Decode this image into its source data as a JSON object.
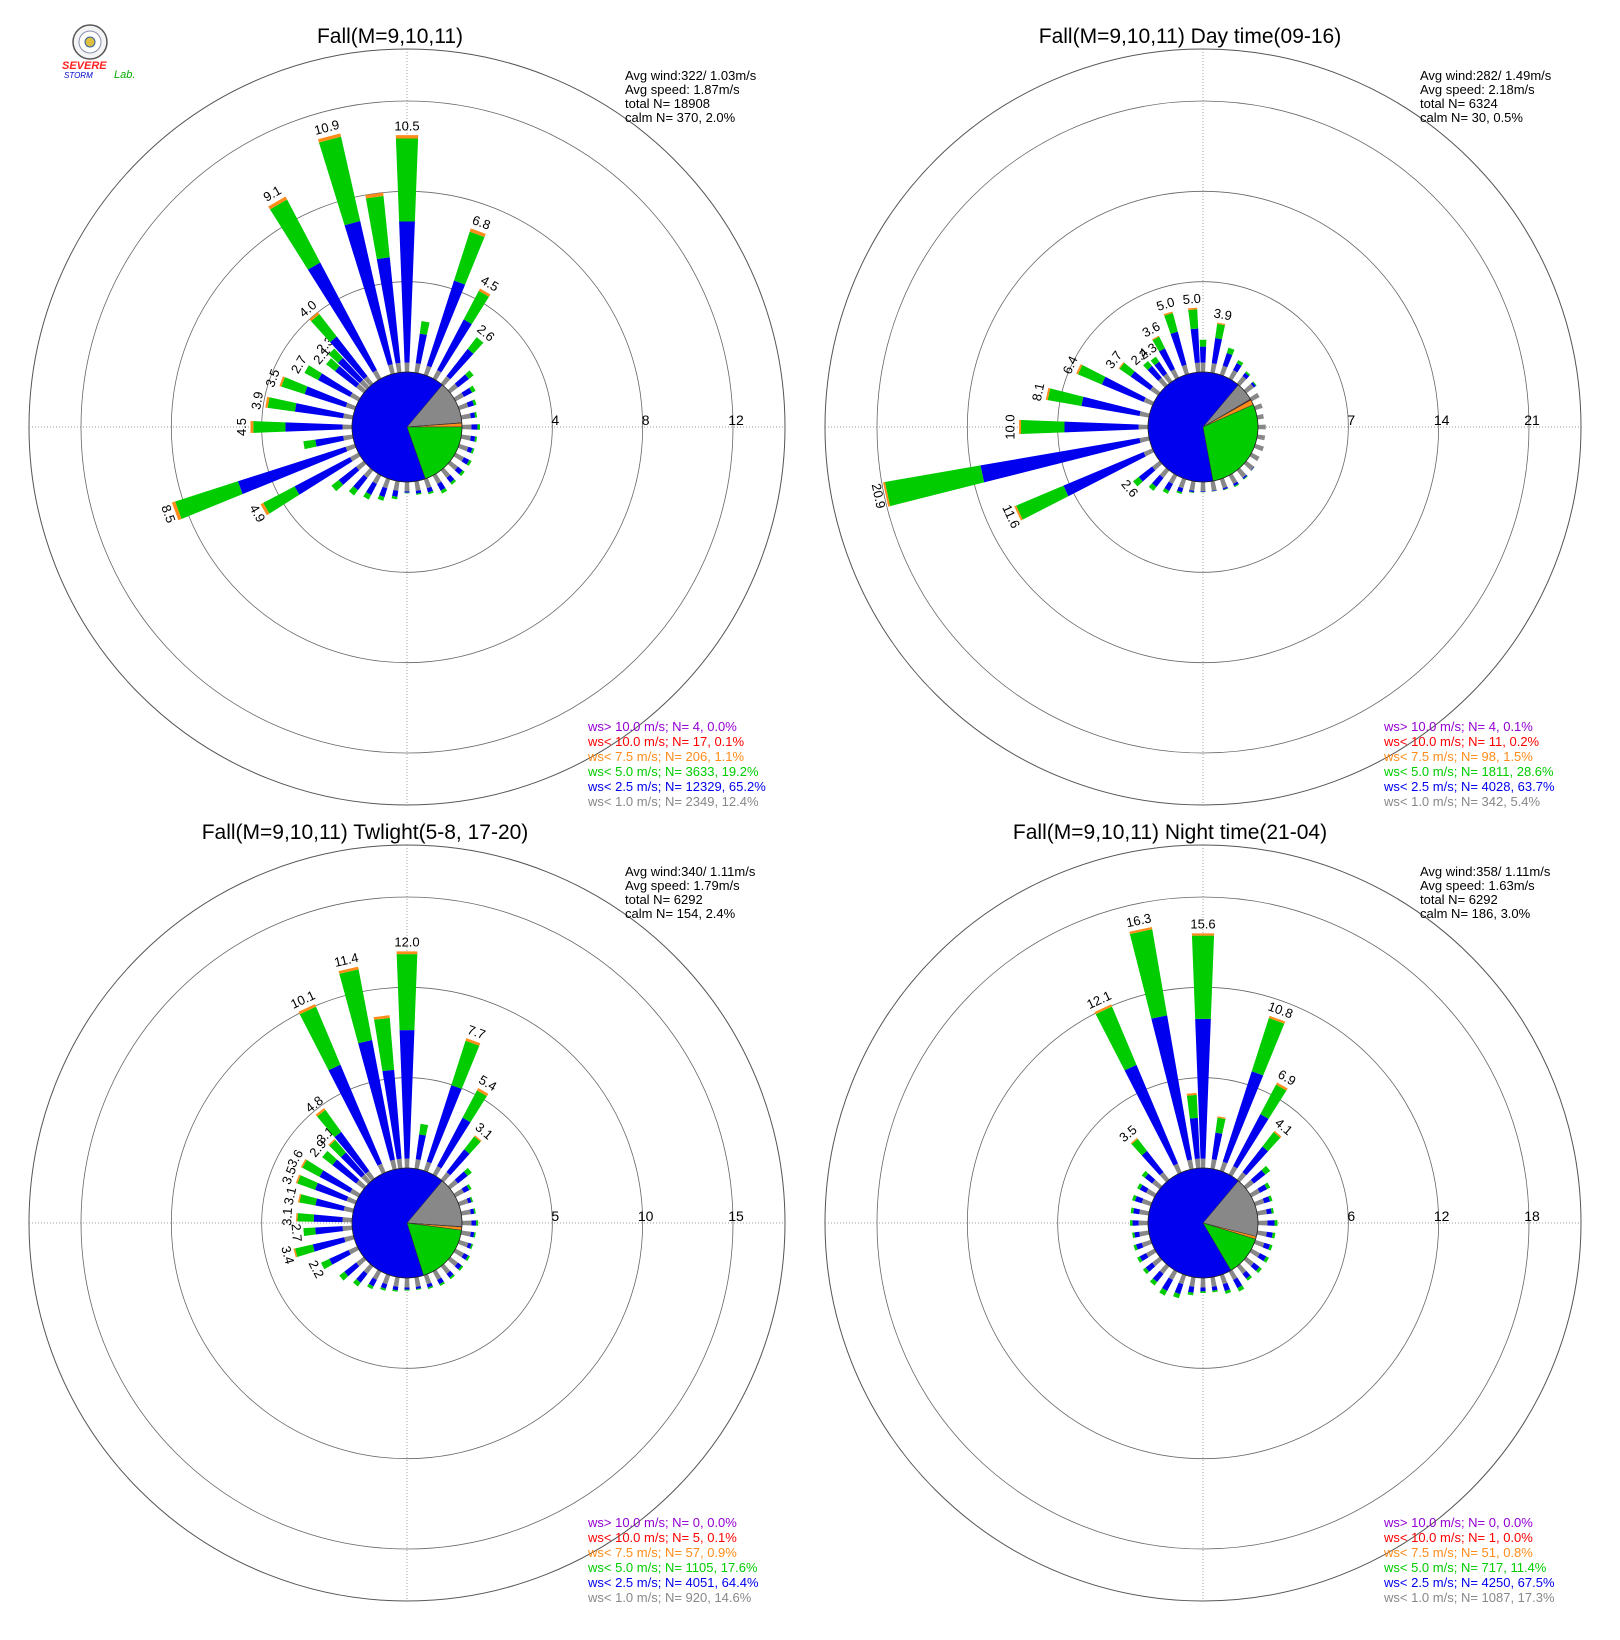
{
  "logo": {
    "line1": "SEVERE",
    "line2": "STORM",
    "line3": "Lab."
  },
  "colors": {
    "calm": "#888888",
    "lt25": "#0000ee",
    "lt50": "#00cc00",
    "lt75": "#ff8c1a",
    "lt100": "#ff0000",
    "gt100": "#9400d3",
    "grid": "#777777"
  },
  "chart_data": [
    {
      "type": "windrose",
      "title": "Fall(M=9,10,11)",
      "rings": [
        4,
        8,
        12
      ],
      "ring_labels": [
        "4",
        "8",
        "12"
      ],
      "stats": [
        "Avg wind:322/ 1.03m/s",
        "Avg speed: 1.87m/s",
        "total N=       18908",
        "calm N=    370,   2.0%"
      ],
      "legend": [
        "ws> 10.0 m/s; N=     4,  0.0%",
        "ws< 10.0 m/s; N=    17,  0.1%",
        "ws<  7.5 m/s; N=   206,  1.1%",
        "ws<  5.0 m/s; N=  3633, 19.2%",
        "ws<  2.5 m/s; N= 12329, 65.2%",
        "ws<  1.0 m/s; N=  2349, 12.4%"
      ],
      "pie": [
        12.4,
        65.2,
        19.2,
        1.1,
        0.1,
        0.0
      ],
      "bars": [
        {
          "dir": 0,
          "v": 10.5,
          "label": "10.5"
        },
        {
          "dir": 10,
          "v": 2.3
        },
        {
          "dir": 20,
          "v": 6.8,
          "label": "6.8"
        },
        {
          "dir": 30,
          "v": 4.5,
          "label": "4.5"
        },
        {
          "dir": 40,
          "v": 2.6,
          "label": "2.6"
        },
        {
          "dir": 50,
          "v": 1.3
        },
        {
          "dir": 60,
          "v": 1.0
        },
        {
          "dir": 70,
          "v": 0.8
        },
        {
          "dir": 80,
          "v": 0.7
        },
        {
          "dir": 90,
          "v": 0.8
        },
        {
          "dir": 100,
          "v": 0.7
        },
        {
          "dir": 110,
          "v": 0.7
        },
        {
          "dir": 120,
          "v": 0.8
        },
        {
          "dir": 130,
          "v": 0.8
        },
        {
          "dir": 140,
          "v": 0.8
        },
        {
          "dir": 150,
          "v": 0.9
        },
        {
          "dir": 160,
          "v": 0.7
        },
        {
          "dir": 170,
          "v": 0.6
        },
        {
          "dir": 180,
          "v": 0.5
        },
        {
          "dir": 190,
          "v": 0.8
        },
        {
          "dir": 200,
          "v": 1.0
        },
        {
          "dir": 210,
          "v": 1.2
        },
        {
          "dir": 220,
          "v": 1.4
        },
        {
          "dir": 230,
          "v": 1.8
        },
        {
          "dir": 240,
          "v": 4.9,
          "label": "4.9"
        },
        {
          "dir": 250,
          "v": 8.5,
          "label": "8.5"
        },
        {
          "dir": 260,
          "v": 2.2
        },
        {
          "dir": 270,
          "v": 4.5,
          "label": "4.5"
        },
        {
          "dir": 280,
          "v": 3.9,
          "label": "3.9"
        },
        {
          "dir": 290,
          "v": 3.5,
          "label": "3.5"
        },
        {
          "dir": 300,
          "v": 2.7,
          "label": "2.7"
        },
        {
          "dir": 310,
          "v": 2.1,
          "label": "2.1"
        },
        {
          "dir": 315,
          "v": 2.3,
          "label": "2.3"
        },
        {
          "dir": 320,
          "v": 4.0,
          "label": "4.0"
        },
        {
          "dir": 330,
          "v": 9.1,
          "label": "9.1"
        },
        {
          "dir": 345,
          "v": 10.9,
          "label": "10.9"
        },
        {
          "dir": 352,
          "v": 8.0
        }
      ]
    },
    {
      "type": "windrose",
      "title": "Fall(M=9,10,11) Day time(09-16)",
      "rings": [
        7,
        14,
        21
      ],
      "ring_labels": [
        "7",
        "14",
        "21"
      ],
      "stats": [
        "Avg wind:282/ 1.49m/s",
        "Avg speed: 2.18m/s",
        "total N=        6324",
        "calm N=     30,   0.5%"
      ],
      "legend": [
        "ws> 10.0 m/s; N=     4,  0.1%",
        "ws< 10.0 m/s; N=    11,  0.2%",
        "ws<  7.5 m/s; N=    98,  1.5%",
        "ws<  5.0 m/s; N=  1811, 28.6%",
        "ws<  2.5 m/s; N=  4028, 63.7%",
        "ws<  1.0 m/s; N=   342,  5.4%"
      ],
      "pie": [
        5.4,
        63.7,
        28.6,
        1.5,
        0.2,
        0.1
      ],
      "bars": [
        {
          "dir": 0,
          "v": 2.5
        },
        {
          "dir": 10,
          "v": 3.9,
          "label": "3.9"
        },
        {
          "dir": 20,
          "v": 2.2
        },
        {
          "dir": 30,
          "v": 1.6
        },
        {
          "dir": 40,
          "v": 1.2
        },
        {
          "dir": 50,
          "v": 1.0
        },
        {
          "dir": 60,
          "v": 0.7
        },
        {
          "dir": 70,
          "v": 0.6
        },
        {
          "dir": 80,
          "v": 0.5
        },
        {
          "dir": 90,
          "v": 0.6
        },
        {
          "dir": 100,
          "v": 0.6
        },
        {
          "dir": 110,
          "v": 0.7
        },
        {
          "dir": 120,
          "v": 0.7
        },
        {
          "dir": 130,
          "v": 0.8
        },
        {
          "dir": 140,
          "v": 0.9
        },
        {
          "dir": 150,
          "v": 1.0
        },
        {
          "dir": 160,
          "v": 0.9
        },
        {
          "dir": 170,
          "v": 0.8
        },
        {
          "dir": 180,
          "v": 0.8
        },
        {
          "dir": 190,
          "v": 0.9
        },
        {
          "dir": 200,
          "v": 1.2
        },
        {
          "dir": 210,
          "v": 1.6
        },
        {
          "dir": 220,
          "v": 2.0
        },
        {
          "dir": 230,
          "v": 2.6,
          "label": "2.6"
        },
        {
          "dir": 245,
          "v": 11.6,
          "label": "11.6"
        },
        {
          "dir": 258,
          "v": 20.9,
          "label": "20.9"
        },
        {
          "dir": 270,
          "v": 10.0,
          "label": "10.0"
        },
        {
          "dir": 282,
          "v": 8.1,
          "label": "8.1"
        },
        {
          "dir": 295,
          "v": 6.4,
          "label": "6.4"
        },
        {
          "dir": 307,
          "v": 3.7,
          "label": "3.7"
        },
        {
          "dir": 318,
          "v": 2.4,
          "label": "2.4"
        },
        {
          "dir": 324,
          "v": 2.3,
          "label": "2.3"
        },
        {
          "dir": 332,
          "v": 3.6,
          "label": "3.6"
        },
        {
          "dir": 343,
          "v": 5.0,
          "label": "5.0"
        },
        {
          "dir": 355,
          "v": 5.0,
          "label": "5.0"
        }
      ]
    },
    {
      "type": "windrose",
      "title": "Fall(M=9,10,11) Twlight(5-8, 17-20)",
      "rings": [
        5,
        10,
        15
      ],
      "ring_labels": [
        "5",
        "10",
        "15"
      ],
      "stats": [
        "Avg wind:340/ 1.11m/s",
        "Avg speed: 1.79m/s",
        "total N=        6292",
        "calm N=    154,   2.4%"
      ],
      "legend": [
        "ws> 10.0 m/s; N=     0,  0.0%",
        "ws< 10.0 m/s; N=     5,  0.1%",
        "ws<  7.5 m/s; N=    57,  0.9%",
        "ws<  5.0 m/s; N=  1105, 17.6%",
        "ws<  2.5 m/s; N=  4051, 64.4%",
        "ws<  1.0 m/s; N=   920, 14.6%"
      ],
      "pie": [
        14.6,
        64.4,
        17.6,
        0.9,
        0.1,
        0.0
      ],
      "bars": [
        {
          "dir": 0,
          "v": 12.0,
          "label": "12.0"
        },
        {
          "dir": 10,
          "v": 2.5
        },
        {
          "dir": 20,
          "v": 7.7,
          "label": "7.7"
        },
        {
          "dir": 30,
          "v": 5.4,
          "label": "5.4"
        },
        {
          "dir": 40,
          "v": 3.1,
          "label": "3.1"
        },
        {
          "dir": 50,
          "v": 1.5
        },
        {
          "dir": 60,
          "v": 1.0
        },
        {
          "dir": 70,
          "v": 0.8
        },
        {
          "dir": 80,
          "v": 0.8
        },
        {
          "dir": 90,
          "v": 0.9
        },
        {
          "dir": 100,
          "v": 0.8
        },
        {
          "dir": 110,
          "v": 0.8
        },
        {
          "dir": 120,
          "v": 0.9
        },
        {
          "dir": 130,
          "v": 0.9
        },
        {
          "dir": 140,
          "v": 0.9
        },
        {
          "dir": 150,
          "v": 0.9
        },
        {
          "dir": 160,
          "v": 0.8
        },
        {
          "dir": 170,
          "v": 0.7
        },
        {
          "dir": 180,
          "v": 0.7
        },
        {
          "dir": 190,
          "v": 0.8
        },
        {
          "dir": 200,
          "v": 0.9
        },
        {
          "dir": 210,
          "v": 1.1
        },
        {
          "dir": 220,
          "v": 1.4
        },
        {
          "dir": 230,
          "v": 1.7
        },
        {
          "dir": 243,
          "v": 2.2,
          "label": "2.2"
        },
        {
          "dir": 255,
          "v": 3.4,
          "label": "3.4"
        },
        {
          "dir": 265,
          "v": 2.7,
          "label": "2.7"
        },
        {
          "dir": 273,
          "v": 3.1,
          "label": "3.1"
        },
        {
          "dir": 283,
          "v": 3.1,
          "label": "3.1"
        },
        {
          "dir": 292,
          "v": 3.5,
          "label": "3.5"
        },
        {
          "dir": 300,
          "v": 3.6,
          "label": "3.6"
        },
        {
          "dir": 310,
          "v": 2.9,
          "label": "2.9"
        },
        {
          "dir": 317,
          "v": 3.1,
          "label": "3.1"
        },
        {
          "dir": 322,
          "v": 4.8,
          "label": "4.8"
        },
        {
          "dir": 335,
          "v": 10.1,
          "label": "10.1"
        },
        {
          "dir": 347,
          "v": 11.4,
          "label": "11.4"
        },
        {
          "dir": 353,
          "v": 8.5
        }
      ]
    },
    {
      "type": "windrose",
      "title": "Fall(M=9,10,11) Night time(21-04)",
      "rings": [
        6,
        12,
        18
      ],
      "ring_labels": [
        "6",
        "12",
        "18"
      ],
      "stats": [
        "Avg wind:358/ 1.11m/s",
        "Avg speed: 1.63m/s",
        "total N=        6292",
        "calm N=    186,   3.0%"
      ],
      "legend": [
        "ws> 10.0 m/s; N=     0,  0.0%",
        "ws< 10.0 m/s; N=     1,  0.0%",
        "ws<  7.5 m/s; N=    51,  0.8%",
        "ws<  5.0 m/s; N=   717, 11.4%",
        "ws<  2.5 m/s; N=  4250, 67.5%",
        "ws<  1.0 m/s; N=  1087, 17.3%"
      ],
      "pie": [
        17.3,
        67.5,
        11.4,
        0.8,
        0.0,
        0.0
      ],
      "bars": [
        {
          "dir": 0,
          "v": 15.6,
          "label": "15.6"
        },
        {
          "dir": 10,
          "v": 3.5
        },
        {
          "dir": 20,
          "v": 10.8,
          "label": "10.8"
        },
        {
          "dir": 30,
          "v": 6.9,
          "label": "6.9"
        },
        {
          "dir": 40,
          "v": 4.1,
          "label": "4.1"
        },
        {
          "dir": 50,
          "v": 2.0
        },
        {
          "dir": 60,
          "v": 1.4
        },
        {
          "dir": 70,
          "v": 1.2
        },
        {
          "dir": 80,
          "v": 1.1
        },
        {
          "dir": 90,
          "v": 1.3
        },
        {
          "dir": 100,
          "v": 1.2
        },
        {
          "dir": 110,
          "v": 1.2
        },
        {
          "dir": 120,
          "v": 1.3
        },
        {
          "dir": 130,
          "v": 1.3
        },
        {
          "dir": 140,
          "v": 1.2
        },
        {
          "dir": 150,
          "v": 1.5
        },
        {
          "dir": 160,
          "v": 1.3
        },
        {
          "dir": 170,
          "v": 1.0
        },
        {
          "dir": 180,
          "v": 1.0
        },
        {
          "dir": 190,
          "v": 1.2
        },
        {
          "dir": 200,
          "v": 1.6
        },
        {
          "dir": 210,
          "v": 1.8
        },
        {
          "dir": 220,
          "v": 1.6
        },
        {
          "dir": 230,
          "v": 1.4
        },
        {
          "dir": 240,
          "v": 1.3
        },
        {
          "dir": 250,
          "v": 1.2
        },
        {
          "dir": 260,
          "v": 1.1
        },
        {
          "dir": 270,
          "v": 1.2
        },
        {
          "dir": 280,
          "v": 1.2
        },
        {
          "dir": 290,
          "v": 1.3
        },
        {
          "dir": 300,
          "v": 1.3
        },
        {
          "dir": 310,
          "v": 1.5
        },
        {
          "dir": 320,
          "v": 3.5,
          "label": "3.5"
        },
        {
          "dir": 335,
          "v": 12.1,
          "label": "12.1"
        },
        {
          "dir": 348,
          "v": 16.3,
          "label": "16.3"
        },
        {
          "dir": 355,
          "v": 5.0
        }
      ]
    }
  ]
}
